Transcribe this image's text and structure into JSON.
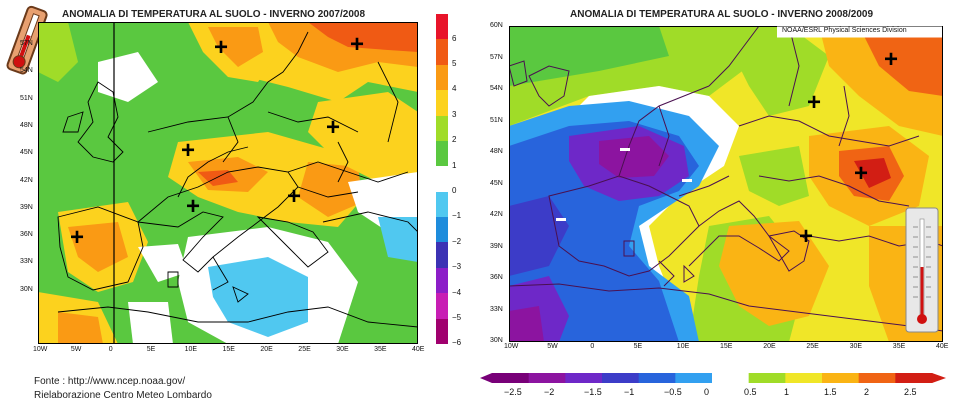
{
  "left_map": {
    "title": "ANOMALIA DI TEMPERATURA AL SUOLO - INVERNO 2007/2008",
    "lat_labels": [
      "57N",
      "54N",
      "51N",
      "48N",
      "45N",
      "42N",
      "39N",
      "36N",
      "33N",
      "30N"
    ],
    "lon_labels": [
      "10W",
      "5W",
      "0",
      "5E",
      "10E",
      "15E",
      "20E",
      "25E",
      "30E",
      "35E",
      "40E"
    ],
    "plus_signs": 8,
    "colorbar": {
      "labels": [
        "6",
        "5",
        "4",
        "3",
        "2",
        "1",
        "0",
        "−1",
        "−2",
        "−3",
        "−4",
        "−5",
        "−6"
      ],
      "colors": [
        "#e8142a",
        "#f05a14",
        "#fa9a14",
        "#fcd21e",
        "#a0dc28",
        "#5ac840",
        "#ffffff",
        "#50c8f0",
        "#1e8cdc",
        "#3c32b4",
        "#8c1ec8",
        "#c81eb4",
        "#a0006e"
      ]
    }
  },
  "right_map": {
    "title": "ANOMALIA DI TEMPERATURA AL SUOLO - INVERNO 2008/2009",
    "credit": "NOAA/ESRL Physical Sciences Division",
    "lat_labels": [
      "60N",
      "57N",
      "54N",
      "51N",
      "48N",
      "45N",
      "42N",
      "39N",
      "36N",
      "33N",
      "30N"
    ],
    "lon_labels": [
      "10W",
      "5W",
      "0",
      "5E",
      "10E",
      "15E",
      "20E",
      "25E",
      "30E",
      "35E",
      "40E"
    ],
    "plus_signs": 5,
    "minus_signs": 3,
    "colorbar": {
      "labels": [
        "−2.5",
        "−2",
        "−1.5",
        "−1",
        "−0.5",
        "0",
        "0.5",
        "1",
        "1.5",
        "2",
        "2.5"
      ],
      "colors": [
        "#780078",
        "#8c14a0",
        "#6e28c8",
        "#3c3cc8",
        "#2864dc",
        "#32a0f0",
        "#ffffff",
        "#a0dc28",
        "#f0e628",
        "#fab414",
        "#f06414",
        "#d21e14"
      ]
    }
  },
  "footer": {
    "source": "Fonte : http://www.ncep.noaa.gov/",
    "elaboration": "Rielaborazione Centro Meteo Lombardo"
  },
  "icons": [
    "thermometer-icon",
    "thermometer-instrument-icon"
  ]
}
